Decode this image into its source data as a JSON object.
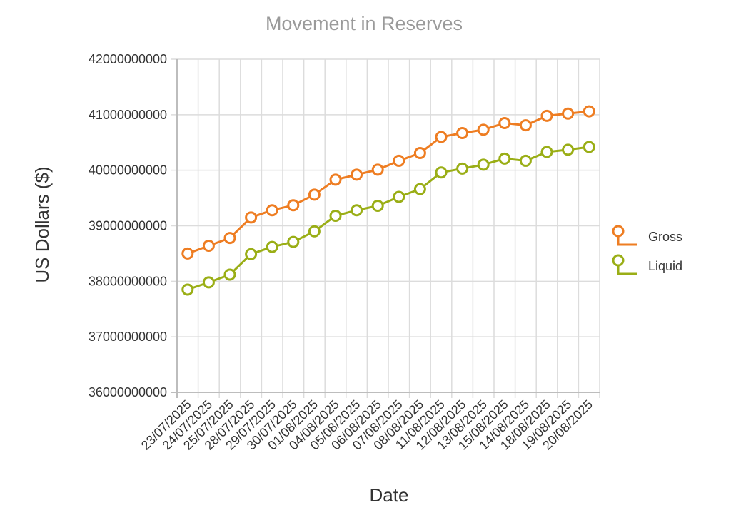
{
  "chart_data": {
    "type": "line",
    "title": "Movement in Reserves",
    "xlabel": "Date",
    "ylabel": "US Dollars ($)",
    "ylim": [
      36000000000,
      42000000000
    ],
    "yticks": [
      36000000000,
      37000000000,
      38000000000,
      39000000000,
      40000000000,
      41000000000,
      42000000000
    ],
    "grid": true,
    "legend_position": "right",
    "categories": [
      "23/07/2025",
      "24/07/2025",
      "25/07/2025",
      "28/07/2025",
      "29/07/2025",
      "30/07/2025",
      "01/08/2025",
      "04/08/2025",
      "05/08/2025",
      "06/08/2025",
      "07/08/2025",
      "08/08/2025",
      "11/08/2025",
      "12/08/2025",
      "13/08/2025",
      "15/08/2025",
      "14/08/2025",
      "18/08/2025",
      "19/08/2025",
      "20/08/2025"
    ],
    "series": [
      {
        "name": "Gross",
        "color": "#ee7d22",
        "values": [
          38500000000,
          38640000000,
          38780000000,
          39150000000,
          39280000000,
          39370000000,
          39560000000,
          39830000000,
          39920000000,
          40010000000,
          40170000000,
          40310000000,
          40600000000,
          40670000000,
          40730000000,
          40850000000,
          40810000000,
          40980000000,
          41020000000,
          41060000000
        ]
      },
      {
        "name": "Liquid",
        "color": "#9aae16",
        "values": [
          37850000000,
          37980000000,
          38120000000,
          38490000000,
          38620000000,
          38710000000,
          38900000000,
          39180000000,
          39280000000,
          39360000000,
          39520000000,
          39660000000,
          39960000000,
          40030000000,
          40100000000,
          40210000000,
          40170000000,
          40330000000,
          40370000000,
          40420000000
        ]
      }
    ]
  }
}
